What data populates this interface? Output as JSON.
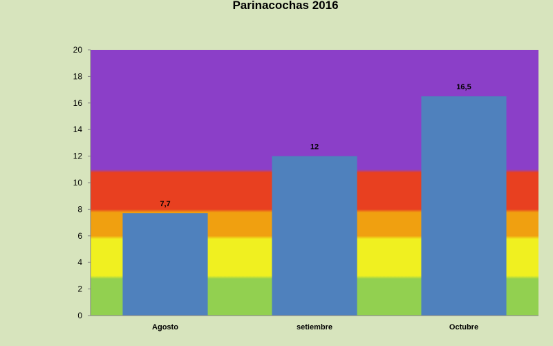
{
  "chart_data": {
    "type": "bar",
    "title": "Parinacochas  2016",
    "categories": [
      "Agosto",
      "setiembre",
      "Octubre"
    ],
    "values": [
      7.7,
      12,
      16.5
    ],
    "data_labels": [
      "7,7",
      "12",
      "16,5"
    ],
    "ylim": [
      0,
      20
    ],
    "yticks": [
      0,
      2,
      4,
      6,
      8,
      10,
      12,
      14,
      16,
      18,
      20
    ],
    "xlabel": "",
    "ylabel": "",
    "grid": false,
    "legend": "none",
    "bar_color": "#4f81bd",
    "background_bands": [
      {
        "from": 0,
        "to": 3,
        "color": "#92d050"
      },
      {
        "from": 3,
        "to": 6,
        "color": "#f0f020"
      },
      {
        "from": 6,
        "to": 8,
        "color": "#f0a010"
      },
      {
        "from": 8,
        "to": 11,
        "color": "#e84020"
      },
      {
        "from": 11,
        "to": 20,
        "color": "#8b3fc8"
      }
    ]
  }
}
